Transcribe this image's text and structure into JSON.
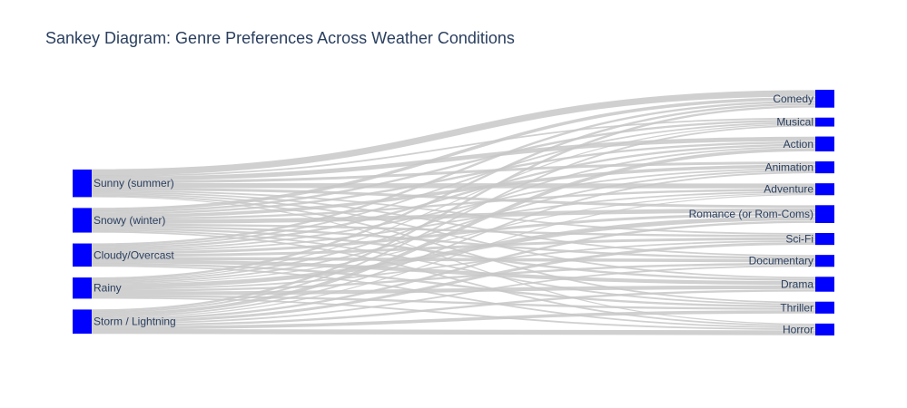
{
  "title": "Sankey Diagram: Genre Preferences Across Weather Conditions",
  "colors": {
    "node": "#0000ff",
    "link": "#c8c8c8",
    "text": "#2a3f5f"
  },
  "chart_data": {
    "type": "sankey",
    "sources": [
      "Sunny (summer)",
      "Snowy (winter)",
      "Cloudy/Overcast",
      "Rainy",
      "Storm / Lightning"
    ],
    "targets": [
      "Comedy",
      "Musical",
      "Action",
      "Animation",
      "Adventure",
      "Romance (or Rom-Coms)",
      "Sci-Fi",
      "Documentary",
      "Drama",
      "Thriller",
      "Horror"
    ],
    "target_values": [
      3,
      1.5,
      2.5,
      2,
      2,
      3,
      2,
      2,
      2.5,
      2,
      2
    ],
    "links": [
      {
        "source": "Sunny (summer)",
        "target": "Comedy",
        "value": 1.2
      },
      {
        "source": "Sunny (summer)",
        "target": "Musical",
        "value": 0.3
      },
      {
        "source": "Sunny (summer)",
        "target": "Action",
        "value": 0.8
      },
      {
        "source": "Sunny (summer)",
        "target": "Animation",
        "value": 0.5
      },
      {
        "source": "Sunny (summer)",
        "target": "Adventure",
        "value": 0.9
      },
      {
        "source": "Sunny (summer)",
        "target": "Romance (or Rom-Coms)",
        "value": 0.5
      },
      {
        "source": "Sunny (summer)",
        "target": "Sci-Fi",
        "value": 0.3
      },
      {
        "source": "Sunny (summer)",
        "target": "Documentary",
        "value": 0.3
      },
      {
        "source": "Sunny (summer)",
        "target": "Drama",
        "value": 0.3
      },
      {
        "source": "Sunny (summer)",
        "target": "Thriller",
        "value": 0.3
      },
      {
        "source": "Sunny (summer)",
        "target": "Horror",
        "value": 0.2
      },
      {
        "source": "Snowy (winter)",
        "target": "Comedy",
        "value": 0.6
      },
      {
        "source": "Snowy (winter)",
        "target": "Musical",
        "value": 0.4
      },
      {
        "source": "Snowy (winter)",
        "target": "Action",
        "value": 0.4
      },
      {
        "source": "Snowy (winter)",
        "target": "Animation",
        "value": 0.6
      },
      {
        "source": "Snowy (winter)",
        "target": "Adventure",
        "value": 0.4
      },
      {
        "source": "Snowy (winter)",
        "target": "Romance (or Rom-Coms)",
        "value": 0.8
      },
      {
        "source": "Snowy (winter)",
        "target": "Sci-Fi",
        "value": 0.4
      },
      {
        "source": "Snowy (winter)",
        "target": "Documentary",
        "value": 0.4
      },
      {
        "source": "Snowy (winter)",
        "target": "Drama",
        "value": 0.4
      },
      {
        "source": "Snowy (winter)",
        "target": "Thriller",
        "value": 0.3
      },
      {
        "source": "Snowy (winter)",
        "target": "Horror",
        "value": 0.3
      },
      {
        "source": "Cloudy/Overcast",
        "target": "Comedy",
        "value": 0.4
      },
      {
        "source": "Cloudy/Overcast",
        "target": "Musical",
        "value": 0.3
      },
      {
        "source": "Cloudy/Overcast",
        "target": "Action",
        "value": 0.4
      },
      {
        "source": "Cloudy/Overcast",
        "target": "Animation",
        "value": 0.3
      },
      {
        "source": "Cloudy/Overcast",
        "target": "Adventure",
        "value": 0.3
      },
      {
        "source": "Cloudy/Overcast",
        "target": "Romance (or Rom-Coms)",
        "value": 0.5
      },
      {
        "source": "Cloudy/Overcast",
        "target": "Sci-Fi",
        "value": 0.5
      },
      {
        "source": "Cloudy/Overcast",
        "target": "Documentary",
        "value": 0.6
      },
      {
        "source": "Cloudy/Overcast",
        "target": "Drama",
        "value": 0.7
      },
      {
        "source": "Cloudy/Overcast",
        "target": "Thriller",
        "value": 0.4
      },
      {
        "source": "Cloudy/Overcast",
        "target": "Horror",
        "value": 0.3
      },
      {
        "source": "Rainy",
        "target": "Comedy",
        "value": 0.4
      },
      {
        "source": "Rainy",
        "target": "Musical",
        "value": 0.2
      },
      {
        "source": "Rainy",
        "target": "Action",
        "value": 0.3
      },
      {
        "source": "Rainy",
        "target": "Animation",
        "value": 0.3
      },
      {
        "source": "Rainy",
        "target": "Adventure",
        "value": 0.2
      },
      {
        "source": "Rainy",
        "target": "Romance (or Rom-Coms)",
        "value": 0.8
      },
      {
        "source": "Rainy",
        "target": "Sci-Fi",
        "value": 0.3
      },
      {
        "source": "Rainy",
        "target": "Documentary",
        "value": 0.4
      },
      {
        "source": "Rainy",
        "target": "Drama",
        "value": 0.7
      },
      {
        "source": "Rainy",
        "target": "Thriller",
        "value": 0.4
      },
      {
        "source": "Rainy",
        "target": "Horror",
        "value": 0.3
      },
      {
        "source": "Storm / Lightning",
        "target": "Comedy",
        "value": 0.4
      },
      {
        "source": "Storm / Lightning",
        "target": "Musical",
        "value": 0.3
      },
      {
        "source": "Storm / Lightning",
        "target": "Action",
        "value": 0.6
      },
      {
        "source": "Storm / Lightning",
        "target": "Animation",
        "value": 0.3
      },
      {
        "source": "Storm / Lightning",
        "target": "Adventure",
        "value": 0.2
      },
      {
        "source": "Storm / Lightning",
        "target": "Romance (or Rom-Coms)",
        "value": 0.4
      },
      {
        "source": "Storm / Lightning",
        "target": "Sci-Fi",
        "value": 0.5
      },
      {
        "source": "Storm / Lightning",
        "target": "Documentary",
        "value": 0.3
      },
      {
        "source": "Storm / Lightning",
        "target": "Drama",
        "value": 0.4
      },
      {
        "source": "Storm / Lightning",
        "target": "Thriller",
        "value": 0.6
      },
      {
        "source": "Storm / Lightning",
        "target": "Horror",
        "value": 0.9
      }
    ]
  }
}
